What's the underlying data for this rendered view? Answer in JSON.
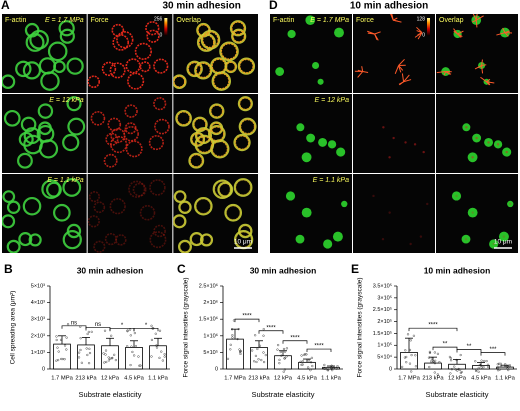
{
  "panels": [
    {
      "letter": "A",
      "title": "30 min adhesion",
      "columns": [
        "F-actin",
        "Force",
        "Overlap"
      ],
      "rows": [
        "E = 1.7 MPa",
        "E = 12 kPa",
        "E = 1.1 kPa"
      ],
      "colorbar": [
        "256",
        "0"
      ],
      "scalebar": "10 μm"
    },
    {
      "letter": "D",
      "title": "10 min adhesion",
      "columns": [
        "F-actin",
        "Force",
        "Overlap"
      ],
      "rows": [
        "E = 1.7 MPa",
        "E = 12 kPa",
        "E = 1.1 kPa"
      ],
      "colorbar": [
        "128",
        "0"
      ],
      "scalebar": "10 μm"
    }
  ],
  "chart_data": [
    {
      "letter": "B",
      "type": "bar",
      "title": "30 min adhesion",
      "ylabel": "Cell spreading area (μm²)",
      "xlabel": "Substrate elasticity",
      "categories": [
        "1.7 MPa",
        "213 kPa",
        "12 kPa",
        "4.5 kPa",
        "1.1 kPa"
      ],
      "values": [
        1500,
        1450,
        1400,
        1300,
        1400
      ],
      "errors": [
        500,
        450,
        450,
        400,
        450
      ],
      "color": "#ffffff",
      "ylim": [
        0,
        5000
      ],
      "yticks": [
        0,
        {
          "value": 1000,
          "label": "1×10³"
        },
        {
          "value": 2000,
          "label": "2×10³"
        },
        {
          "value": 3000,
          "label": "3×10³"
        },
        {
          "value": 4000,
          "label": "4×10³"
        },
        {
          "value": 5000,
          "label": "5×10³"
        }
      ],
      "significance": [
        {
          "between": [
            0,
            1
          ],
          "label": "ns"
        },
        {
          "between": [
            1,
            2
          ],
          "label": "ns"
        },
        {
          "between": [
            2,
            3
          ],
          "label": "*"
        },
        {
          "between": [
            3,
            4
          ],
          "label": "*"
        }
      ]
    },
    {
      "letter": "C",
      "type": "bar",
      "title": "30 min adhesion",
      "ylabel": "Force signal intensities (grayscale)",
      "xlabel": "Substrate elasticity",
      "categories": [
        "1.7 MPa",
        "213 kPa",
        "12 kPa",
        "4.5 kPa",
        "1.1 kPa"
      ],
      "values": [
        900000,
        650000,
        400000,
        200000,
        50000
      ],
      "errors": [
        300000,
        200000,
        150000,
        100000,
        40000
      ],
      "color": "#ffffff",
      "ylim": [
        0,
        2500000
      ],
      "yticks": [
        0,
        {
          "value": 500000,
          "label": "5×10⁵"
        },
        {
          "value": 1000000,
          "label": "1×10⁶"
        },
        {
          "value": 1500000,
          "label": "1.5×10⁶"
        },
        {
          "value": 2000000,
          "label": "2×10⁶"
        },
        {
          "value": 2500000,
          "label": "2.5×10⁶"
        }
      ],
      "significance": [
        {
          "between": [
            0,
            1
          ],
          "label": "****"
        },
        {
          "between": [
            1,
            2
          ],
          "label": "****"
        },
        {
          "between": [
            2,
            3
          ],
          "label": "****"
        },
        {
          "between": [
            3,
            4
          ],
          "label": "****"
        }
      ]
    },
    {
      "letter": "E",
      "type": "bar",
      "title": "10 min adhesion",
      "ylabel": "Force signal intensities (grayscale)",
      "xlabel": "Substrate elasticity",
      "categories": [
        "1.7 MPa",
        "213 kPa",
        "12 kPa",
        "4.5 kPa",
        "1.1 kPa"
      ],
      "values": [
        70000,
        25000,
        20000,
        15000,
        8000
      ],
      "errors": [
        60000,
        25000,
        20000,
        12000,
        8000
      ],
      "color": "#ffffff",
      "ylim": [
        0,
        350000
      ],
      "yticks": [
        0,
        {
          "value": 50000,
          "label": "5×10⁴"
        },
        {
          "value": 100000,
          "label": "1×10⁵"
        },
        {
          "value": 150000,
          "label": "1.5×10⁵"
        },
        {
          "value": 200000,
          "label": "2×10⁵"
        },
        {
          "value": 250000,
          "label": "2.5×10⁵"
        },
        {
          "value": 300000,
          "label": "3×10⁵"
        },
        {
          "value": 350000,
          "label": "3.5×10⁵"
        }
      ],
      "significance": [
        {
          "between": [
            0,
            2
          ],
          "label": "****"
        },
        {
          "between": [
            1,
            2
          ],
          "label": "**"
        },
        {
          "between": [
            2,
            3
          ],
          "label": "**"
        },
        {
          "between": [
            3,
            4
          ],
          "label": "***"
        }
      ]
    }
  ]
}
